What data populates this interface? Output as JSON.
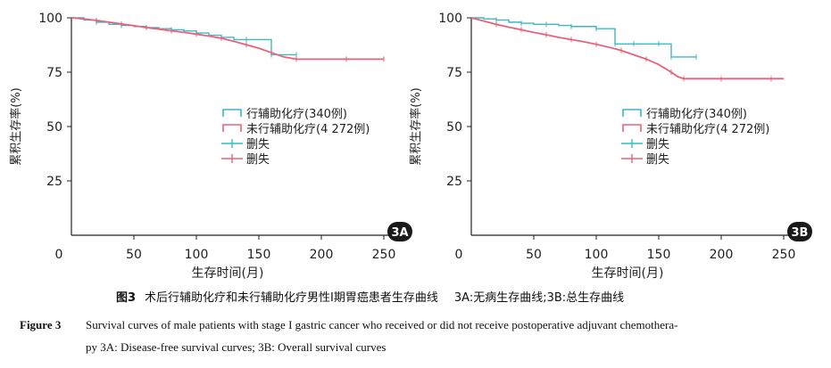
{
  "colors": {
    "adjuvant": "#3fb8c4",
    "no_adjuvant": "#e8627a",
    "axis": "#222222"
  },
  "caption": {
    "cn_label": "图3",
    "cn_text": "术后行辅助化疗和未行辅助化疗男性I期胃癌患者生存曲线",
    "cn_sub": "3A:无病生存曲线;3B:总生存曲线",
    "en_label": "Figure 3",
    "en_text_line1": "Survival curves of male patients with stage I gastric cancer who received or did not receive postoperative adjuvant chemothera-",
    "en_text_line2": "py    3A: Disease-free survival curves; 3B: Overall survival curves"
  },
  "chart_data": [
    {
      "type": "line",
      "panel": "3A",
      "title": "",
      "xlabel": "生存时间(月)",
      "ylabel": "累积生存率(%)",
      "xlim": [
        0,
        250
      ],
      "ylim": [
        0,
        100
      ],
      "x_ticks": [
        0,
        50,
        100,
        150,
        200,
        250
      ],
      "y_ticks": [
        25,
        50,
        75,
        100
      ],
      "legend_position": "center-right",
      "legend": [
        "行辅助化疗(340例)",
        "未行辅助化疗(4 272例)",
        "删失",
        "删失"
      ],
      "series": [
        {
          "name": "行辅助化疗(340例)",
          "color_key": "adjuvant",
          "step": true,
          "x": [
            0,
            10,
            20,
            30,
            40,
            50,
            60,
            70,
            80,
            90,
            100,
            110,
            120,
            130,
            140,
            150,
            160,
            170,
            180
          ],
          "y": [
            100,
            99,
            98,
            97,
            96.5,
            96,
            95.5,
            95,
            94.5,
            94,
            93,
            92,
            91,
            90,
            90,
            90,
            83,
            83,
            83
          ]
        },
        {
          "name": "未行辅助化疗(4 272例)",
          "color_key": "no_adjuvant",
          "step": false,
          "x": [
            0,
            10,
            20,
            30,
            40,
            50,
            60,
            70,
            80,
            90,
            100,
            110,
            120,
            130,
            140,
            150,
            160,
            170,
            180,
            200,
            220,
            240,
            250
          ],
          "y": [
            100,
            99.5,
            98.8,
            98,
            97.2,
            96.4,
            95.5,
            94.8,
            94,
            93.3,
            92.5,
            91.6,
            90.6,
            89.2,
            87.6,
            86,
            84,
            82,
            81,
            81,
            81,
            81,
            81
          ]
        }
      ]
    },
    {
      "type": "line",
      "panel": "3B",
      "title": "",
      "xlabel": "生存时间(月)",
      "ylabel": "累积生存率(%)",
      "xlim": [
        0,
        250
      ],
      "ylim": [
        0,
        100
      ],
      "x_ticks": [
        0,
        50,
        100,
        150,
        200,
        250
      ],
      "y_ticks": [
        25,
        50,
        75,
        100
      ],
      "legend_position": "center-right",
      "legend": [
        "行辅助化疗(340例)",
        "未行辅助化疗(4 272例)",
        "删失",
        "删失"
      ],
      "series": [
        {
          "name": "行辅助化疗(340例)",
          "color_key": "adjuvant",
          "step": true,
          "x": [
            0,
            10,
            20,
            30,
            40,
            50,
            60,
            70,
            80,
            90,
            100,
            110,
            115,
            120,
            130,
            140,
            150,
            155,
            160,
            170,
            180
          ],
          "y": [
            100,
            99.5,
            99,
            98,
            97.5,
            97,
            97,
            96.5,
            96,
            96,
            95,
            95,
            88,
            88,
            88,
            88,
            88,
            88,
            82,
            82,
            82
          ]
        },
        {
          "name": "未行辅助化疗(4 272例)",
          "color_key": "no_adjuvant",
          "step": false,
          "x": [
            0,
            10,
            20,
            30,
            40,
            50,
            60,
            70,
            80,
            90,
            100,
            110,
            120,
            130,
            140,
            150,
            160,
            165,
            170,
            180,
            200,
            220,
            240,
            250
          ],
          "y": [
            100,
            98.5,
            97,
            95.7,
            94.5,
            93.3,
            92.2,
            91,
            90,
            89,
            87.8,
            86.5,
            85,
            83,
            81,
            78.5,
            75,
            73,
            72,
            72,
            72,
            72,
            72,
            72
          ]
        }
      ]
    }
  ]
}
